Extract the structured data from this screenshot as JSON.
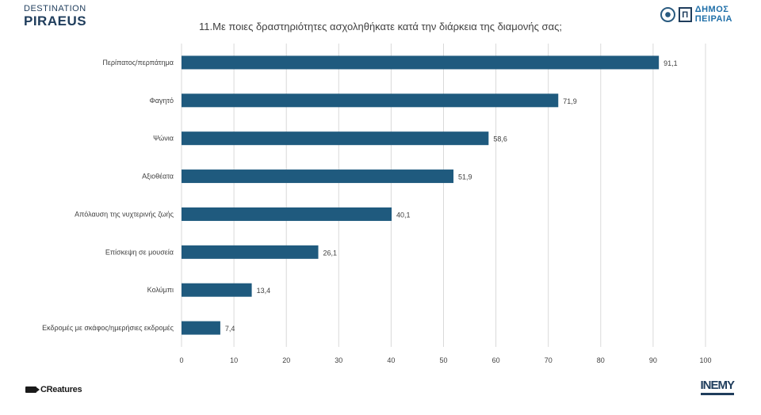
{
  "header": {
    "logo_left_line1": "DESTINATION",
    "logo_left_line2": "PIRAEUS",
    "logo_right_line1": "ΔΗΜΟΣ",
    "logo_right_line2": "ΠΕΙΡΑΙΑ",
    "logo_right_mark": "Π"
  },
  "footer": {
    "left_logo": "CReatures",
    "right_logo": "INEMY"
  },
  "colors": {
    "bar": "#1f5a7e",
    "grid": "#d9d9d9",
    "text": "#404040",
    "brand": "#1f3d5c"
  },
  "chart_data": {
    "type": "bar",
    "orientation": "horizontal",
    "title": "11.Με ποιες δραστηριότητες ασχοληθήκατε κατά την διάρκεια της διαμονής σας;",
    "categories": [
      "Περίπατος/περπάτημα",
      "Φαγητό",
      "Ψώνια",
      "Αξιοθέατα",
      "Απόλαυση της νυχτερινής ζωής",
      "Επίσκεψη σε μουσεία",
      "Κολύμπι",
      "Εκδρομές με σκάφος/ημερήσιες εκδρομές"
    ],
    "values": [
      91.1,
      71.9,
      58.6,
      51.9,
      40.1,
      26.1,
      13.4,
      7.4
    ],
    "value_labels": [
      "91,1",
      "71,9",
      "58,6",
      "51,9",
      "40,1",
      "26,1",
      "13,4",
      "7,4"
    ],
    "xlim": [
      0,
      100
    ],
    "xticks": [
      0,
      10,
      20,
      30,
      40,
      50,
      60,
      70,
      80,
      90,
      100
    ],
    "grid": true,
    "legend": "none"
  }
}
